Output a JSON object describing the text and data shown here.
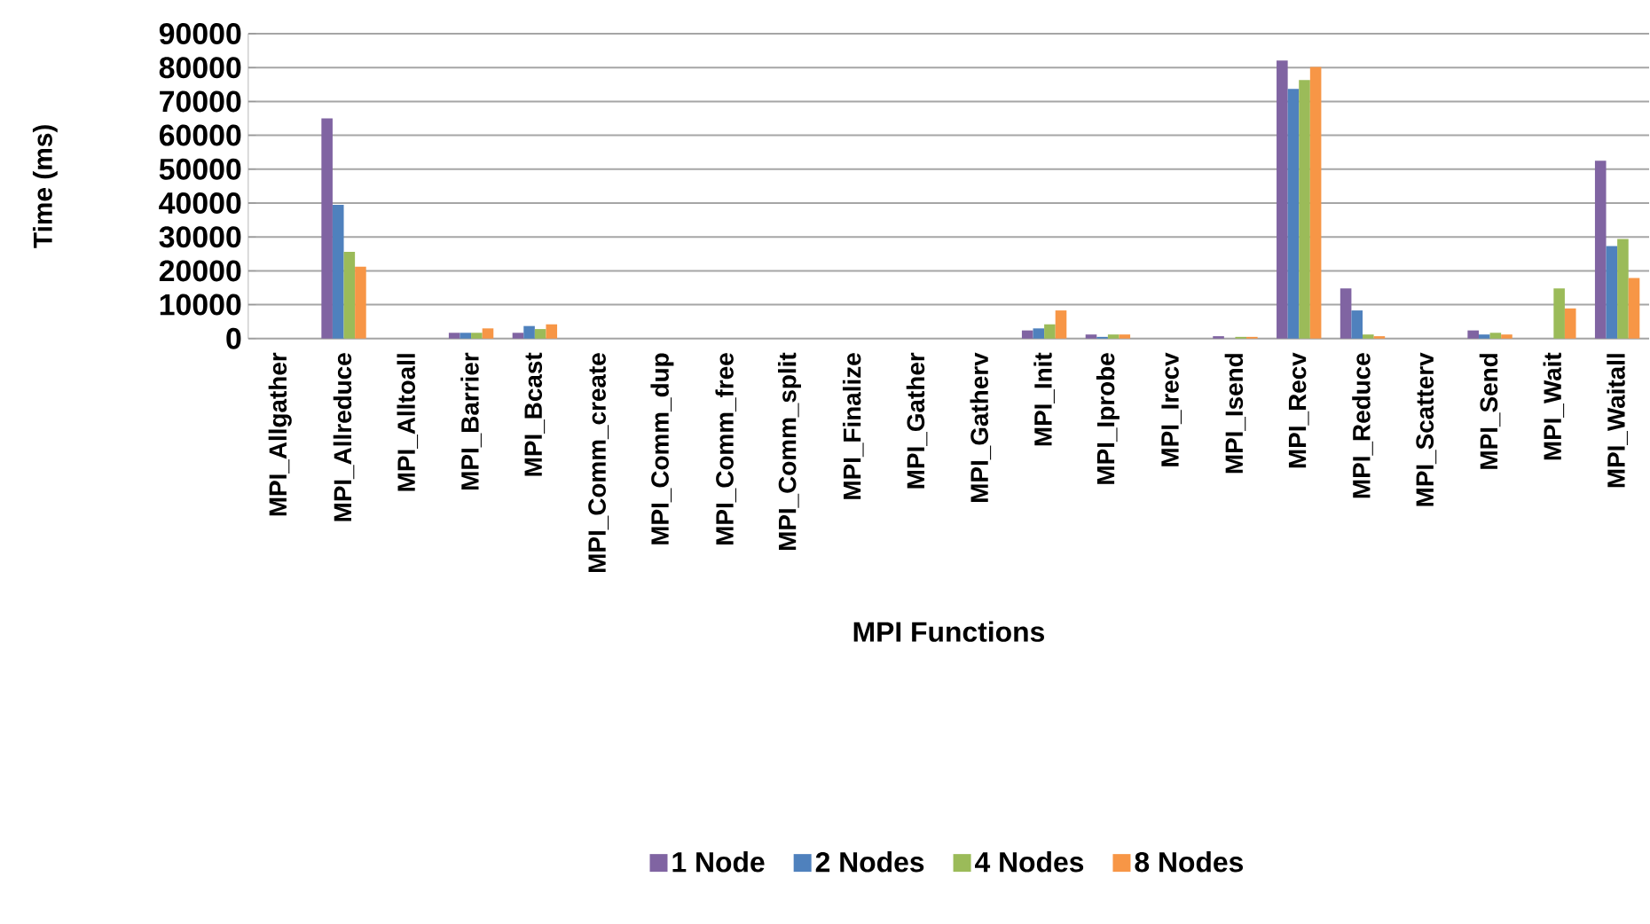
{
  "chart_data": {
    "type": "bar",
    "xlabel": "MPI Functions",
    "ylabel": "Time (ms)",
    "categories": [
      "MPI_Allgather",
      "MPI_Allreduce",
      "MPI_Alltoall",
      "MPI_Barrier",
      "MPI_Bcast",
      "MPI_Comm_create",
      "MPI_Comm_dup",
      "MPI_Comm_free",
      "MPI_Comm_split",
      "MPI_Finalize",
      "MPI_Gather",
      "MPI_Gatherv",
      "MPI_Init",
      "MPI_Iprobe",
      "MPI_Irecv",
      "MPI_Isend",
      "MPI_Recv",
      "MPI_Reduce",
      "MPI_Scatterv",
      "MPI_Send",
      "MPI_Wait",
      "MPI_Waitall"
    ],
    "series": [
      {
        "name": "1 Node",
        "color": "#8064a2",
        "values": [
          0,
          65000,
          0,
          1700,
          1700,
          0,
          0,
          0,
          0,
          0,
          0,
          0,
          2400,
          1200,
          0,
          700,
          82100,
          14800,
          0,
          2400,
          0,
          52500
        ]
      },
      {
        "name": "2 Nodes",
        "color": "#4f81bd",
        "values": [
          0,
          39500,
          0,
          1700,
          3700,
          0,
          0,
          0,
          0,
          0,
          0,
          0,
          3000,
          500,
          0,
          0,
          73700,
          8300,
          0,
          1200,
          0,
          27300
        ]
      },
      {
        "name": "4 Nodes",
        "color": "#9bbb59",
        "values": [
          0,
          25600,
          0,
          1700,
          2800,
          0,
          0,
          0,
          0,
          0,
          0,
          0,
          4200,
          1200,
          0,
          500,
          76300,
          1200,
          0,
          1700,
          14800,
          29400
        ]
      },
      {
        "name": "8 Nodes",
        "color": "#f79646",
        "values": [
          0,
          21200,
          0,
          3000,
          4200,
          0,
          0,
          0,
          0,
          0,
          0,
          0,
          8300,
          1200,
          0,
          500,
          80200,
          700,
          0,
          1200,
          8900,
          17900
        ]
      }
    ],
    "ylim": [
      0,
      90000
    ],
    "yticks": [
      0,
      10000,
      20000,
      30000,
      40000,
      50000,
      60000,
      70000,
      80000,
      90000
    ],
    "grid": "y",
    "legend": "bottom"
  }
}
